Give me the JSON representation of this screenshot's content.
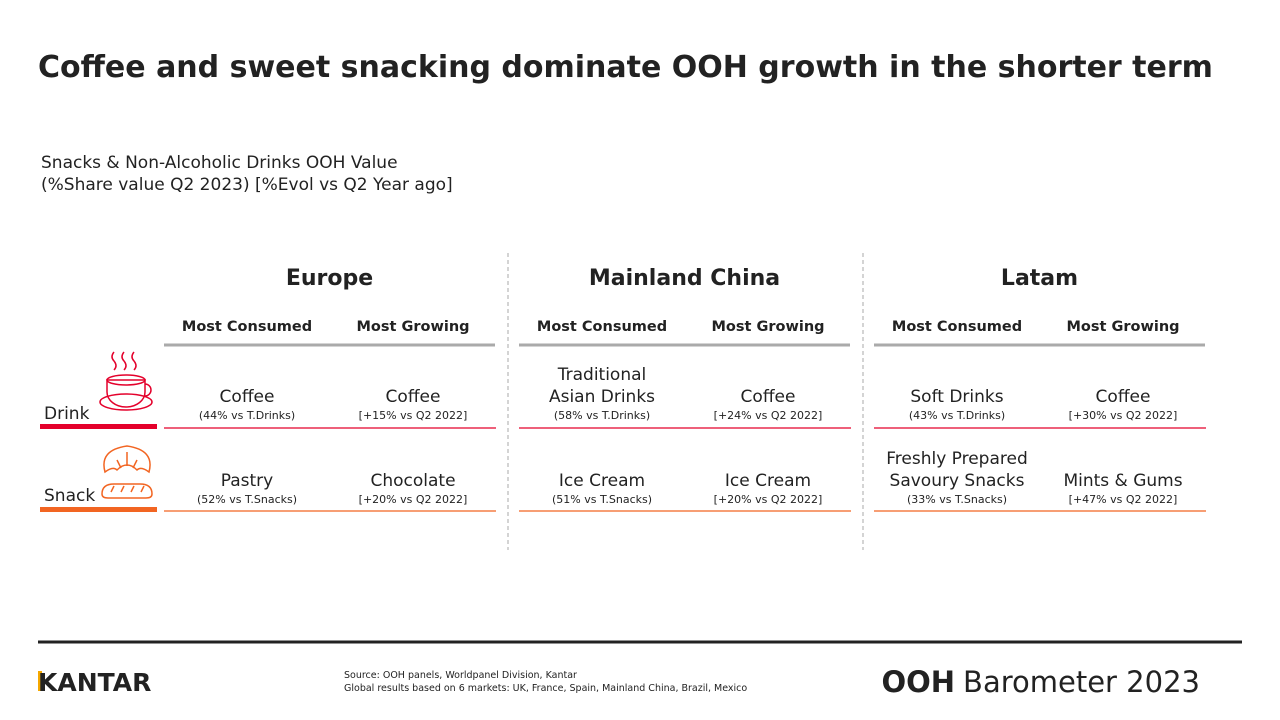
{
  "title": "Coffee and sweet snacking dominate OOH growth in the shorter term",
  "subtitle": [
    "Snacks & Non-Alcoholic Drinks OOH Value",
    "(%Share value Q2 2023) [%Evol vs Q2 Year ago]"
  ],
  "row_labels": [
    "Drink",
    "Snack"
  ],
  "regions": [
    {
      "name": "Europe",
      "columns": [
        "Most Consumed",
        "Most Growing"
      ],
      "rows": [
        [
          {
            "name": [
              "Coffee"
            ],
            "detail": "(44% vs T.Drinks)"
          },
          {
            "name": [
              "Coffee"
            ],
            "detail": "[+15% vs Q2 2022]"
          }
        ],
        [
          {
            "name": [
              "Pastry"
            ],
            "detail": "(52% vs T.Snacks)"
          },
          {
            "name": [
              "Chocolate"
            ],
            "detail": "[+20% vs Q2 2022]"
          }
        ]
      ]
    },
    {
      "name": "Mainland China",
      "columns": [
        "Most Consumed",
        "Most Growing"
      ],
      "rows": [
        [
          {
            "name": [
              "Traditional",
              "Asian Drinks"
            ],
            "detail": "(58% vs T.Drinks)"
          },
          {
            "name": [
              "Coffee"
            ],
            "detail": "[+24% vs Q2 2022]"
          }
        ],
        [
          {
            "name": [
              "Ice Cream"
            ],
            "detail": "(51% vs T.Snacks)"
          },
          {
            "name": [
              "Ice Cream"
            ],
            "detail": "[+20% vs Q2 2022]"
          }
        ]
      ]
    },
    {
      "name": "Latam",
      "columns": [
        "Most Consumed",
        "Most Growing"
      ],
      "rows": [
        [
          {
            "name": [
              "Soft Drinks"
            ],
            "detail": "(43% vs T.Drinks)"
          },
          {
            "name": [
              "Coffee"
            ],
            "detail": "[+30% vs Q2 2022]"
          }
        ],
        [
          {
            "name": [
              "Freshly Prepared",
              "Savoury Snacks"
            ],
            "detail": "(33% vs T.Snacks)"
          },
          {
            "name": [
              "Mints & Gums"
            ],
            "detail": "[+47% vs Q2 2022]"
          }
        ]
      ]
    }
  ],
  "footer": {
    "logo": "KANTAR",
    "source": [
      "Source: OOH panels, Worldpanel Division, Kantar",
      "Global results based on 6 markets: UK, France, Spain, Mainland China, Brazil, Mexico"
    ],
    "brand_bold": "OOH",
    "brand_rest": "Barometer 2023"
  }
}
